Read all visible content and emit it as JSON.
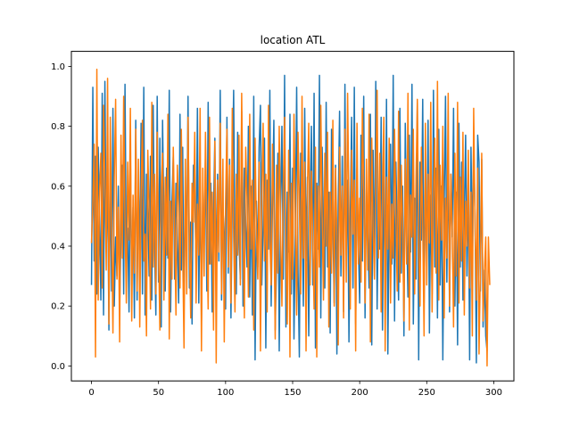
{
  "chart_data": {
    "type": "line",
    "title": "location ATL",
    "xlabel": "",
    "ylabel": "",
    "xlim": [
      -15,
      315
    ],
    "ylim": [
      -0.05,
      1.05
    ],
    "xticks": [
      0,
      50,
      100,
      150,
      200,
      250,
      300
    ],
    "yticks": [
      0.0,
      0.2,
      0.4,
      0.6,
      0.8,
      1.0
    ],
    "ytick_labels": [
      "0.0",
      "0.2",
      "0.4",
      "0.6",
      "0.8",
      "1.0"
    ],
    "grid": false,
    "legend": "none",
    "x_start": 0,
    "x_step": 1,
    "series": [
      {
        "color": "#1f77b4",
        "values": [
          0.27,
          0.93,
          0.35,
          0.7,
          0.24,
          0.73,
          0.5,
          0.22,
          0.91,
          0.17,
          0.95,
          0.38,
          0.63,
          0.12,
          0.65,
          0.25,
          0.86,
          0.2,
          0.43,
          0.3,
          0.6,
          0.2,
          0.43,
          0.67,
          0.24,
          0.94,
          0.33,
          0.46,
          0.18,
          0.71,
          0.27,
          0.53,
          0.16,
          0.82,
          0.22,
          0.59,
          0.37,
          0.81,
          0.24,
          0.93,
          0.17,
          0.64,
          0.52,
          0.3,
          0.7,
          0.22,
          0.87,
          0.41,
          0.17,
          0.9,
          0.28,
          0.76,
          0.13,
          0.82,
          0.49,
          0.25,
          0.66,
          0.36,
          0.92,
          0.18,
          0.55,
          0.7,
          0.29,
          0.61,
          0.44,
          0.21,
          0.84,
          0.32,
          0.73,
          0.19,
          0.59,
          0.38,
          0.9,
          0.26,
          0.48,
          0.14,
          0.67,
          0.58,
          0.33,
          0.86,
          0.21,
          0.62,
          0.15,
          0.57,
          0.4,
          0.7,
          0.25,
          0.88,
          0.34,
          0.61,
          0.18,
          0.52,
          0.76,
          0.27,
          0.64,
          0.35,
          0.92,
          0.22,
          0.53,
          0.44,
          0.19,
          0.83,
          0.31,
          0.69,
          0.16,
          0.57,
          0.92,
          0.37,
          0.24,
          0.78,
          0.41,
          0.29,
          0.85,
          0.2,
          0.66,
          0.48,
          0.33,
          0.8,
          0.23,
          0.6,
          0.17,
          0.9,
          0.02,
          0.55,
          0.33,
          0.73,
          0.87,
          0.27,
          0.47,
          0.76,
          0.06,
          0.62,
          0.39,
          0.92,
          0.2,
          0.56,
          0.82,
          0.12,
          0.35,
          0.71,
          0.05,
          0.51,
          0.8,
          0.29,
          0.97,
          0.13,
          0.58,
          0.38,
          0.84,
          0.24,
          0.66,
          0.09,
          0.44,
          0.93,
          0.32,
          0.03,
          0.71,
          0.51,
          0.2,
          0.86,
          0.35,
          0.63,
          0.1,
          0.52,
          0.8,
          0.27,
          0.91,
          0.06,
          0.61,
          0.39,
          0.97,
          0.16,
          0.73,
          0.45,
          0.26,
          0.88,
          0.33,
          0.58,
          0.11,
          0.79,
          0.47,
          0.21,
          0.67,
          0.04,
          0.54,
          0.85,
          0.3,
          0.7,
          0.18,
          0.94,
          0.37,
          0.62,
          0.08,
          0.5,
          0.83,
          0.26,
          0.93,
          0.14,
          0.66,
          0.41,
          0.21,
          0.77,
          0.35,
          0.9,
          0.16,
          0.59,
          0.46,
          0.26,
          0.84,
          0.07,
          0.72,
          0.3,
          0.95,
          0.19,
          0.55,
          0.39,
          0.83,
          0.12,
          0.64,
          0.27,
          0.89,
          0.04,
          0.51,
          0.74,
          0.34,
          0.97,
          0.15,
          0.68,
          0.43,
          0.22,
          0.86,
          0.31,
          0.6,
          0.1,
          0.81,
          0.47,
          0.23,
          0.77,
          0.38,
          0.94,
          0.14,
          0.56,
          0.29,
          0.88,
          0.02,
          0.68,
          0.42,
          0.89,
          0.21,
          0.61,
          0.36,
          0.82,
          0.11,
          0.57,
          0.24,
          0.92,
          0.33,
          0.66,
          0.16,
          0.79,
          0.27,
          0.6,
          0.02,
          0.53,
          0.9,
          0.28,
          0.74,
          0.18,
          0.64,
          0.43,
          0.86,
          0.2,
          0.58,
          0.07,
          0.81,
          0.33,
          0.68,
          0.22,
          0.5,
          0.77,
          0.3,
          0.64,
          0.02,
          0.73,
          0.39,
          0.76,
          0.5,
          0.01,
          0.77,
          0.68,
          0.25,
          0.69,
          0.13,
          0.32,
          0.1,
          0.05
        ]
      },
      {
        "color": "#ff7f0e",
        "values": [
          0.41,
          0.55,
          0.74,
          0.03,
          0.99,
          0.22,
          0.58,
          0.71,
          0.26,
          0.87,
          0.62,
          0.32,
          0.96,
          0.14,
          0.83,
          0.46,
          0.11,
          0.63,
          0.89,
          0.29,
          0.53,
          0.08,
          0.77,
          0.36,
          0.9,
          0.48,
          0.21,
          0.68,
          0.42,
          0.86,
          0.15,
          0.57,
          0.31,
          0.79,
          0.25,
          0.69,
          0.13,
          0.58,
          0.82,
          0.35,
          0.44,
          0.1,
          0.72,
          0.51,
          0.19,
          0.88,
          0.33,
          0.64,
          0.24,
          0.78,
          0.4,
          0.12,
          0.59,
          0.71,
          0.22,
          0.63,
          0.37,
          0.84,
          0.09,
          0.55,
          0.29,
          0.73,
          0.46,
          0.17,
          0.67,
          0.53,
          0.26,
          0.79,
          0.38,
          0.06,
          0.69,
          0.24,
          0.83,
          0.42,
          0.16,
          0.61,
          0.48,
          0.78,
          0.21,
          0.54,
          0.37,
          0.86,
          0.05,
          0.66,
          0.3,
          0.78,
          0.47,
          0.19,
          0.83,
          0.34,
          0.58,
          0.12,
          0.75,
          0.01,
          0.62,
          0.38,
          0.81,
          0.24,
          0.69,
          0.08,
          0.55,
          0.79,
          0.33,
          0.67,
          0.21,
          0.86,
          0.43,
          0.18,
          0.64,
          0.37,
          0.77,
          0.27,
          0.91,
          0.49,
          0.16,
          0.73,
          0.56,
          0.23,
          0.84,
          0.39,
          0.62,
          0.12,
          0.76,
          0.44,
          0.29,
          0.68,
          0.05,
          0.57,
          0.81,
          0.35,
          0.64,
          0.18,
          0.87,
          0.42,
          0.27,
          0.74,
          0.53,
          0.09,
          0.67,
          0.31,
          0.8,
          0.45,
          0.2,
          0.59,
          0.83,
          0.38,
          0.14,
          0.72,
          0.03,
          0.61,
          0.29,
          0.84,
          0.49,
          0.17,
          0.78,
          0.55,
          0.24,
          0.9,
          0.36,
          0.68,
          0.05,
          0.58,
          0.81,
          0.27,
          0.65,
          0.42,
          0.19,
          0.73,
          0.03,
          0.6,
          0.33,
          0.87,
          0.49,
          0.22,
          0.71,
          0.4,
          0.78,
          0.13,
          0.58,
          0.31,
          0.82,
          0.2,
          0.66,
          0.44,
          0.07,
          0.73,
          0.37,
          0.6,
          0.16,
          0.79,
          0.28,
          0.91,
          0.51,
          0.19,
          0.72,
          0.44,
          0.62,
          0.05,
          0.81,
          0.34,
          0.56,
          0.28,
          0.86,
          0.6,
          0.21,
          0.69,
          0.32,
          0.84,
          0.08,
          0.76,
          0.46,
          0.29,
          0.64,
          0.92,
          0.36,
          0.71,
          0.18,
          0.58,
          0.83,
          0.05,
          0.63,
          0.39,
          0.76,
          0.21,
          0.54,
          0.36,
          0.79,
          0.49,
          0.25,
          0.85,
          0.28,
          0.67,
          0.46,
          0.15,
          0.69,
          0.34,
          0.91,
          0.12,
          0.57,
          0.43,
          0.79,
          0.24,
          0.62,
          0.89,
          0.38,
          0.2,
          0.73,
          0.47,
          0.1,
          0.81,
          0.27,
          0.64,
          0.41,
          0.88,
          0.18,
          0.56,
          0.76,
          0.31,
          0.95,
          0.22,
          0.67,
          0.42,
          0.8,
          0.16,
          0.56,
          0.36,
          0.91,
          0.2,
          0.64,
          0.45,
          0.13,
          0.71,
          0.3,
          0.88,
          0.21,
          0.63,
          0.35,
          0.78,
          0.17,
          0.55,
          0.4,
          0.72,
          0.26,
          0.58,
          0.1,
          0.86,
          0.49,
          0.22,
          0.66,
          0.04,
          0.32,
          0.71,
          0.15,
          0.31,
          0.43,
          0.0,
          0.43,
          0.27
        ]
      }
    ]
  }
}
